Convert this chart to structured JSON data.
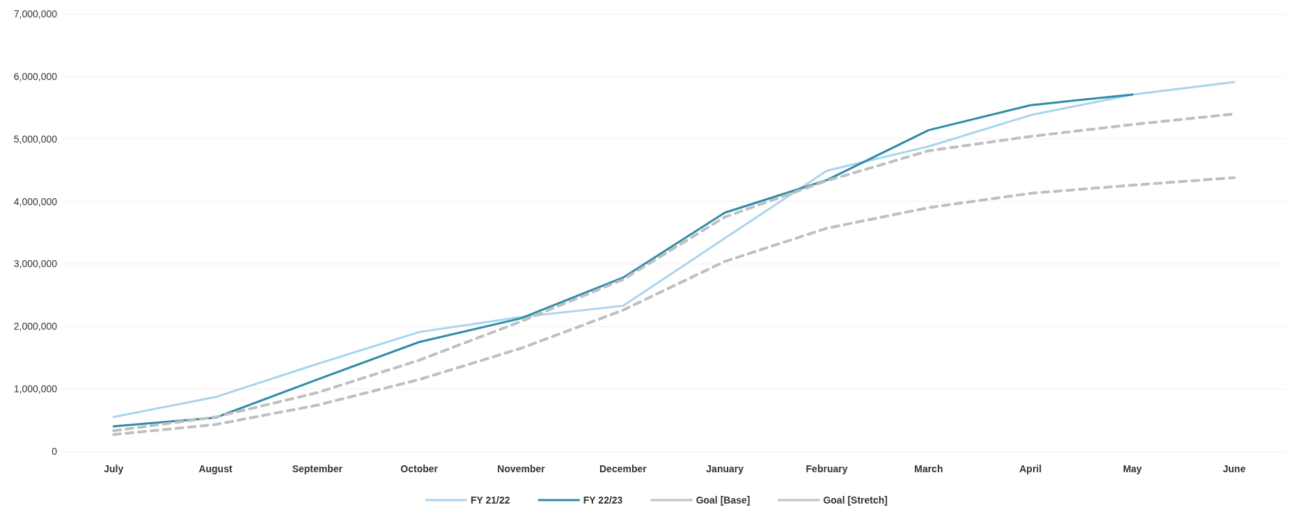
{
  "chart_data": {
    "type": "line",
    "categories": [
      "July",
      "August",
      "September",
      "October",
      "November",
      "December",
      "January",
      "February",
      "March",
      "April",
      "May",
      "June"
    ],
    "series": [
      {
        "name": "FY 21/22",
        "color": "#a8d4f0",
        "values": [
          550000,
          870000,
          1400000,
          1910000,
          2150000,
          2330000,
          3410000,
          4490000,
          4880000,
          5380000,
          5710000,
          5910000
        ]
      },
      {
        "name": "FY 22/23",
        "color": "#2e8ba8",
        "values": [
          400000,
          540000,
          1150000,
          1750000,
          2130000,
          2780000,
          3820000,
          4340000,
          5140000,
          5540000,
          5710000,
          null
        ]
      },
      {
        "name": "Goal [Base]",
        "color": "#bfbfbf",
        "line_style": "dashed",
        "values": [
          270000,
          430000,
          740000,
          1150000,
          1650000,
          2260000,
          3040000,
          3570000,
          3900000,
          4130000,
          4260000,
          4380000
        ]
      },
      {
        "name": "Goal [Stretch]",
        "color": "#bfbfbf",
        "line_style": "dashed",
        "values": [
          330000,
          550000,
          940000,
          1460000,
          2080000,
          2750000,
          3750000,
          4330000,
          4810000,
          5040000,
          5230000,
          5400000
        ]
      }
    ],
    "ylim": [
      0,
      7000000
    ],
    "yticks": [
      0,
      {
        "value": 1000000,
        "label": "1,000,000"
      },
      {
        "value": 2000000,
        "label": "2,000,000"
      },
      {
        "value": 3000000,
        "label": "3,000,000"
      },
      {
        "value": 4000000,
        "label": "4,000,000"
      },
      {
        "value": 5000000,
        "label": "5,000,000"
      },
      {
        "value": 6000000,
        "label": "6,000,000"
      },
      {
        "value": 7000000,
        "label": "7,000,000"
      }
    ],
    "grid": "y",
    "legend": "bottom",
    "marker": "none",
    "line_style": "solid"
  }
}
